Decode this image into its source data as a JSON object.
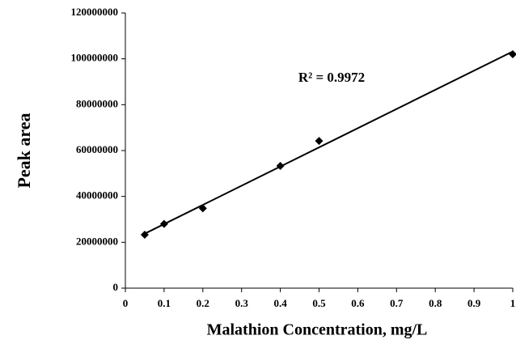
{
  "chart_data": {
    "type": "scatter",
    "xlabel": "Malathion Concentration, mg/L",
    "ylabel": "Peak area",
    "annotation": "R² = 0.9972",
    "trendline": true,
    "series": [
      {
        "color": "#000000",
        "x": [
          0.05,
          0.1,
          0.2,
          0.4,
          0.5,
          1
        ],
        "values": [
          23300000,
          28000000,
          34800000,
          53300000,
          64200000,
          102000000
        ]
      }
    ],
    "xlim": [
      0,
      1
    ],
    "xticks": [
      0,
      0.1,
      0.2,
      0.3,
      0.4,
      0.5,
      0.6,
      0.7,
      0.8,
      0.9,
      1
    ],
    "ylim": [
      0,
      120000000
    ],
    "yticks": [
      0,
      20000000,
      40000000,
      60000000,
      80000000,
      100000000,
      120000000
    ]
  }
}
